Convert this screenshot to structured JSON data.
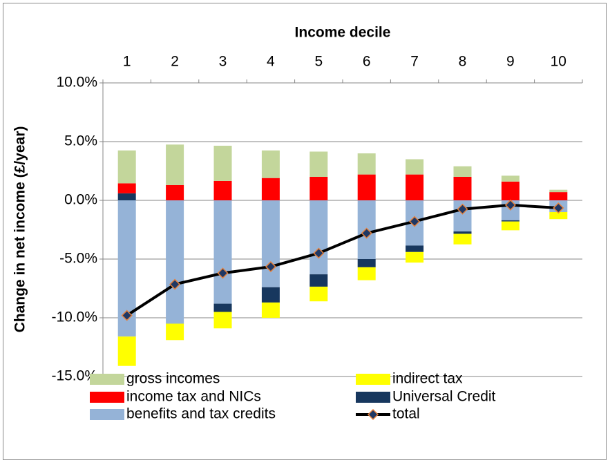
{
  "chart_data": {
    "type": "stacked-bar-line",
    "x_axis_title": "Income decile",
    "y_axis_title": "Change in net income (£/year)",
    "categories": [
      "1",
      "2",
      "3",
      "4",
      "5",
      "6",
      "7",
      "8",
      "9",
      "10"
    ],
    "ylim": [
      -15,
      10
    ],
    "yticks": [
      {
        "value": 10,
        "label": "10.0%"
      },
      {
        "value": 5,
        "label": "5.0%"
      },
      {
        "value": 0,
        "label": "0.0%"
      },
      {
        "value": -5,
        "label": "-5.0%"
      },
      {
        "value": -10,
        "label": "-10.0%"
      },
      {
        "value": -15,
        "label": "-15.0%"
      }
    ],
    "grid": true,
    "series": [
      {
        "name": "gross incomes",
        "color": "#c3d69b",
        "values": [
          2.8,
          3.45,
          3.0,
          2.35,
          2.15,
          1.8,
          1.3,
          0.9,
          0.5,
          0.2
        ]
      },
      {
        "name": "indirect tax",
        "color": "#ffff00",
        "values": [
          -2.5,
          -1.4,
          -1.4,
          -1.3,
          -1.25,
          -1.1,
          -0.9,
          -0.9,
          -0.75,
          -0.6
        ]
      },
      {
        "name": "income tax and NICs",
        "color": "#ff0000",
        "values": [
          0.85,
          1.3,
          1.65,
          1.9,
          2.0,
          2.2,
          2.2,
          2.0,
          1.6,
          0.7
        ]
      },
      {
        "name": "Universal Credit",
        "color": "#17375e",
        "values": [
          0.6,
          0,
          -0.7,
          -1.3,
          -1.05,
          -0.7,
          -0.55,
          -0.2,
          -0.1,
          0
        ]
      },
      {
        "name": "benefits and tax credits",
        "color": "#95b3d7",
        "values": [
          -11.6,
          -10.5,
          -8.8,
          -7.4,
          -6.3,
          -5.0,
          -3.85,
          -2.65,
          -1.7,
          -1.0
        ]
      },
      {
        "name": "total",
        "type": "line",
        "color": "#000000",
        "values": [
          -9.8,
          -7.15,
          -6.2,
          -5.65,
          -4.5,
          -2.8,
          -1.8,
          -0.75,
          -0.4,
          -0.65
        ]
      }
    ]
  }
}
